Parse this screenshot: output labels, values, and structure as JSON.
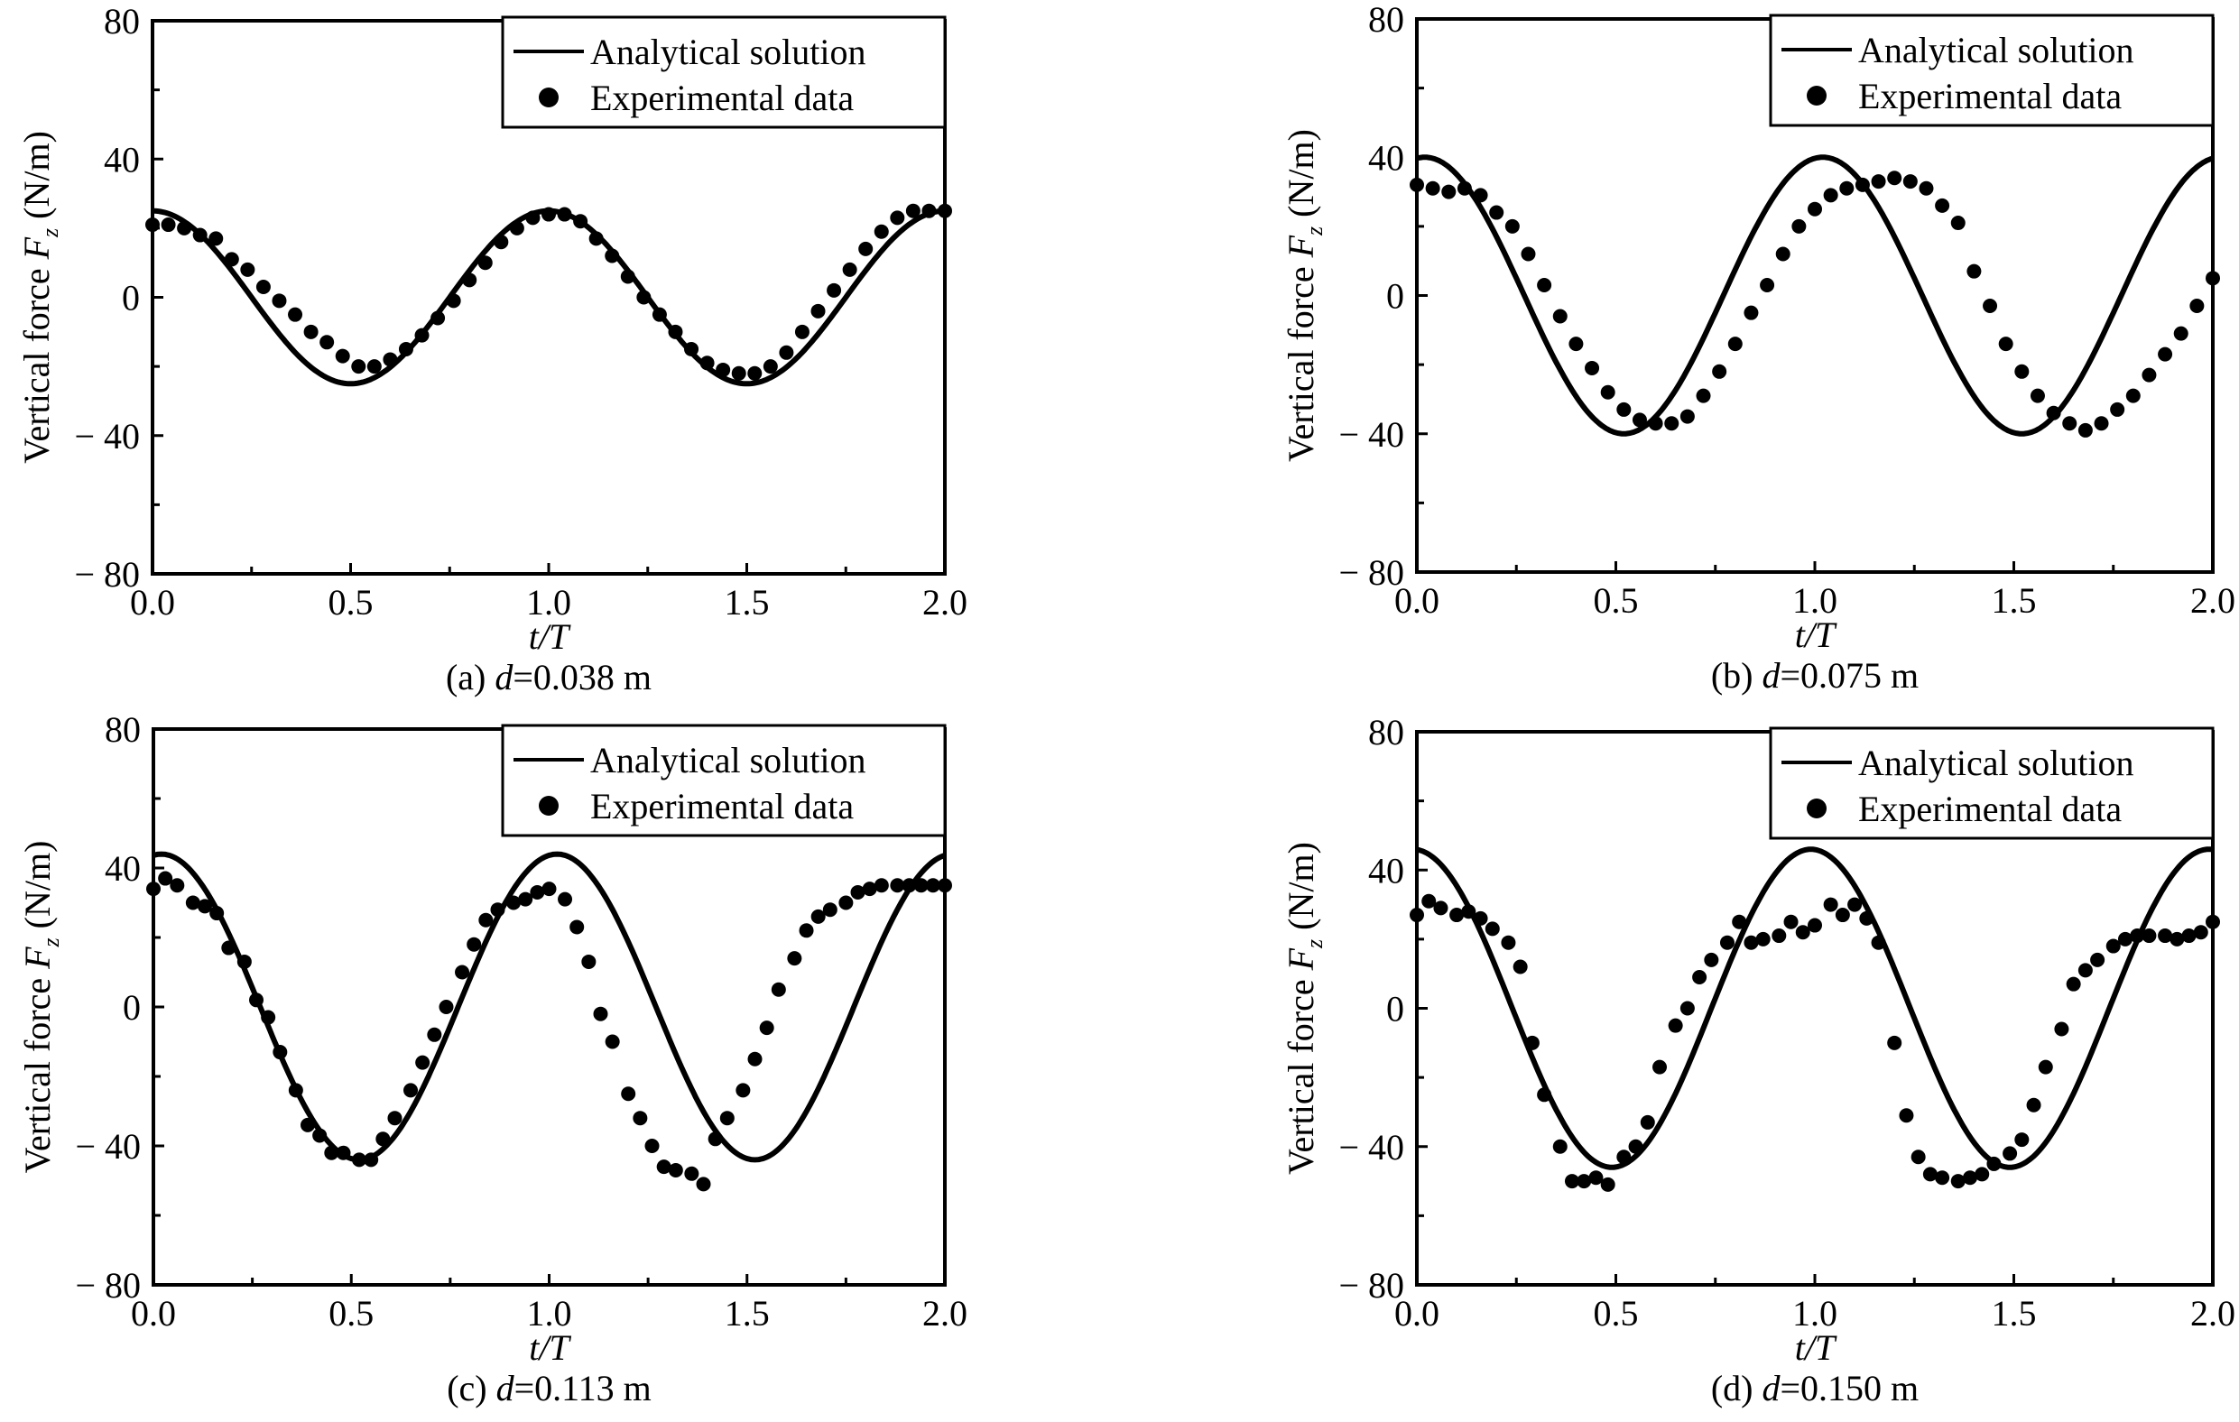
{
  "chart_data": [
    {
      "type": "line",
      "id": "a",
      "caption_prefix": "(a) ",
      "caption_var": "d",
      "caption_suffix": "=0.038 m",
      "xlabel": "t/T",
      "ylabel": "Vertical force F_z (N/m)",
      "ylabel_parts": {
        "prefix": "Vertical force ",
        "var": "F",
        "sub": "z",
        "suffix": " (N/m)"
      },
      "xlim": [
        0,
        2
      ],
      "ylim": [
        -80,
        80
      ],
      "xticks": [
        0.0,
        0.5,
        1.0,
        1.5,
        2.0
      ],
      "xtick_labels": [
        "0.0",
        "0.5",
        "1.0",
        "1.5",
        "2.0"
      ],
      "yticks": [
        80,
        40,
        0,
        -40,
        -80
      ],
      "ytick_labels": [
        "80",
        "40",
        "0",
        "− 40",
        "− 80"
      ],
      "legend": {
        "placement": "top-right",
        "entries": [
          "Analytical solution",
          "Experimental data"
        ]
      },
      "series": [
        {
          "name": "Analytical solution",
          "kind": "line",
          "amplitude": 25,
          "peak_phase": 0.0
        },
        {
          "name": "Experimental data",
          "kind": "scatter",
          "x": [
            0.0,
            0.04,
            0.08,
            0.12,
            0.16,
            0.2,
            0.24,
            0.28,
            0.32,
            0.36,
            0.4,
            0.44,
            0.48,
            0.52,
            0.56,
            0.6,
            0.64,
            0.68,
            0.72,
            0.76,
            0.8,
            0.84,
            0.88,
            0.92,
            0.96,
            1.0,
            1.04,
            1.08,
            1.12,
            1.16,
            1.2,
            1.24,
            1.28,
            1.32,
            1.36,
            1.4,
            1.44,
            1.48,
            1.52,
            1.56,
            1.6,
            1.64,
            1.68,
            1.72,
            1.76,
            1.8,
            1.84,
            1.88,
            1.92,
            1.96,
            2.0
          ],
          "y": [
            21,
            21,
            20,
            18,
            17,
            11,
            8,
            3,
            -1,
            -5,
            -10,
            -13,
            -17,
            -20,
            -20,
            -18,
            -15,
            -11,
            -6,
            -1,
            5,
            10,
            16,
            20,
            23,
            24,
            24,
            22,
            17,
            12,
            6,
            0,
            -5,
            -10,
            -15,
            -19,
            -21,
            -22,
            -22,
            -20,
            -16,
            -10,
            -4,
            2,
            8,
            14,
            19,
            23,
            25,
            25,
            25
          ]
        }
      ]
    },
    {
      "type": "line",
      "id": "b",
      "caption_prefix": "(b) ",
      "caption_var": "d",
      "caption_suffix": "=0.075 m",
      "xlabel": "t/T",
      "ylabel": "Vertical force F_z (N/m)",
      "ylabel_parts": {
        "prefix": "Vertical force ",
        "var": "F",
        "sub": "z",
        "suffix": " (N/m)"
      },
      "xlim": [
        0,
        2
      ],
      "ylim": [
        -80,
        80
      ],
      "xticks": [
        0.0,
        0.5,
        1.0,
        1.5,
        2.0
      ],
      "xtick_labels": [
        "0.0",
        "0.5",
        "1.0",
        "1.5",
        "2.0"
      ],
      "yticks": [
        80,
        40,
        0,
        -40,
        -80
      ],
      "ytick_labels": [
        "80",
        "40",
        "0",
        "− 40",
        "− 80"
      ],
      "legend": {
        "placement": "top-right",
        "entries": [
          "Analytical solution",
          "Experimental data"
        ]
      },
      "series": [
        {
          "name": "Analytical solution",
          "kind": "line",
          "amplitude": 40,
          "peak_phase": 0.02
        },
        {
          "name": "Experimental data",
          "kind": "scatter",
          "x": [
            0.0,
            0.04,
            0.08,
            0.12,
            0.16,
            0.2,
            0.24,
            0.28,
            0.32,
            0.36,
            0.4,
            0.44,
            0.48,
            0.52,
            0.56,
            0.6,
            0.64,
            0.68,
            0.72,
            0.76,
            0.8,
            0.84,
            0.88,
            0.92,
            0.96,
            1.0,
            1.04,
            1.08,
            1.12,
            1.16,
            1.2,
            1.24,
            1.28,
            1.32,
            1.36,
            1.4,
            1.44,
            1.48,
            1.52,
            1.56,
            1.6,
            1.64,
            1.68,
            1.72,
            1.76,
            1.8,
            1.84,
            1.88,
            1.92,
            1.96,
            2.0
          ],
          "y": [
            32,
            31,
            30,
            31,
            29,
            24,
            20,
            12,
            3,
            -6,
            -14,
            -21,
            -28,
            -33,
            -36,
            -37,
            -37,
            -35,
            -29,
            -22,
            -14,
            -5,
            3,
            12,
            20,
            25,
            29,
            31,
            32,
            33,
            34,
            33,
            31,
            26,
            21,
            7,
            -3,
            -14,
            -22,
            -29,
            -34,
            -37,
            -39,
            -37,
            -33,
            -29,
            -23,
            -17,
            -11,
            -3,
            5
          ]
        }
      ]
    },
    {
      "type": "line",
      "id": "c",
      "caption_prefix": "(c) ",
      "caption_var": "d",
      "caption_suffix": "=0.113 m",
      "xlabel": "t/T",
      "ylabel": "Vertical force F_z (N/m)",
      "ylabel_parts": {
        "prefix": "Vertical force ",
        "var": "F",
        "sub": "z",
        "suffix": " (N/m)"
      },
      "xlim": [
        0,
        2
      ],
      "ylim": [
        -80,
        80
      ],
      "xticks": [
        0.0,
        0.5,
        1.0,
        1.5,
        2.0
      ],
      "xtick_labels": [
        "0.0",
        "0.5",
        "1.0",
        "1.5",
        "2.0"
      ],
      "yticks": [
        80,
        40,
        0,
        -40,
        -80
      ],
      "ytick_labels": [
        "80",
        "40",
        "0",
        "− 40",
        "− 80"
      ],
      "legend": {
        "placement": "top-right",
        "entries": [
          "Analytical solution",
          "Experimental data"
        ]
      },
      "series": [
        {
          "name": "Analytical solution",
          "kind": "line",
          "amplitude": 44,
          "peak_phase": 0.02
        },
        {
          "name": "Experimental data",
          "kind": "scatter",
          "x": [
            0.0,
            0.03,
            0.06,
            0.1,
            0.13,
            0.16,
            0.19,
            0.23,
            0.26,
            0.29,
            0.32,
            0.36,
            0.39,
            0.42,
            0.45,
            0.48,
            0.52,
            0.55,
            0.58,
            0.61,
            0.65,
            0.68,
            0.71,
            0.74,
            0.78,
            0.81,
            0.84,
            0.87,
            0.91,
            0.94,
            0.97,
            1.0,
            1.04,
            1.07,
            1.1,
            1.13,
            1.16,
            1.2,
            1.23,
            1.26,
            1.29,
            1.32,
            1.36,
            1.39,
            1.42,
            1.45,
            1.49,
            1.52,
            1.55,
            1.58,
            1.62,
            1.65,
            1.68,
            1.71,
            1.75,
            1.78,
            1.81,
            1.84,
            1.88,
            1.91,
            1.94,
            1.97,
            2.0
          ],
          "y": [
            34,
            37,
            35,
            30,
            29,
            27,
            17,
            13,
            2,
            -3,
            -13,
            -24,
            -34,
            -37,
            -42,
            -42,
            -44,
            -44,
            -38,
            -32,
            -24,
            -16,
            -8,
            0,
            10,
            18,
            25,
            28,
            30,
            31,
            33,
            34,
            31,
            23,
            13,
            -2,
            -10,
            -25,
            -32,
            -40,
            -46,
            -47,
            -48,
            -51,
            -38,
            -32,
            -24,
            -15,
            -6,
            5,
            14,
            22,
            26,
            28,
            30,
            33,
            34,
            35,
            35,
            35,
            35,
            35,
            35
          ]
        }
      ]
    },
    {
      "type": "line",
      "id": "d",
      "caption_prefix": "(d) ",
      "caption_var": "d",
      "caption_suffix": "=0.150 m",
      "xlabel": "t/T",
      "ylabel": "Vertical force F_z (N/m)",
      "ylabel_parts": {
        "prefix": "Vertical force ",
        "var": "F",
        "sub": "z",
        "suffix": " (N/m)"
      },
      "xlim": [
        0,
        2
      ],
      "ylim": [
        -80,
        80
      ],
      "xticks": [
        0.0,
        0.5,
        1.0,
        1.5,
        2.0
      ],
      "xtick_labels": [
        "0.0",
        "0.5",
        "1.0",
        "1.5",
        "2.0"
      ],
      "yticks": [
        80,
        40,
        0,
        -40,
        -80
      ],
      "ytick_labels": [
        "80",
        "40",
        "0",
        "− 40",
        "− 80"
      ],
      "legend": {
        "placement": "top-right",
        "entries": [
          "Analytical solution",
          "Experimental data"
        ]
      },
      "series": [
        {
          "name": "Analytical solution",
          "kind": "line",
          "amplitude": 46,
          "peak_phase": -0.01
        },
        {
          "name": "Experimental data",
          "kind": "scatter",
          "x": [
            0.0,
            0.03,
            0.06,
            0.1,
            0.13,
            0.16,
            0.19,
            0.23,
            0.26,
            0.29,
            0.32,
            0.36,
            0.39,
            0.42,
            0.45,
            0.48,
            0.52,
            0.55,
            0.58,
            0.61,
            0.65,
            0.68,
            0.71,
            0.74,
            0.78,
            0.81,
            0.84,
            0.87,
            0.91,
            0.94,
            0.97,
            1.0,
            1.04,
            1.07,
            1.1,
            1.13,
            1.16,
            1.2,
            1.23,
            1.26,
            1.29,
            1.32,
            1.36,
            1.39,
            1.42,
            1.45,
            1.49,
            1.52,
            1.55,
            1.58,
            1.62,
            1.65,
            1.68,
            1.71,
            1.75,
            1.78,
            1.81,
            1.84,
            1.88,
            1.91,
            1.94,
            1.97,
            2.0
          ],
          "y": [
            27,
            31,
            29,
            27,
            28,
            26,
            23,
            19,
            12,
            -10,
            -25,
            -40,
            -50,
            -50,
            -49,
            -51,
            -43,
            -40,
            -33,
            -17,
            -5,
            0,
            9,
            14,
            19,
            25,
            19,
            20,
            21,
            25,
            22,
            24,
            30,
            27,
            30,
            26,
            19,
            -10,
            -31,
            -43,
            -48,
            -49,
            -50,
            -49,
            -48,
            -45,
            -42,
            -38,
            -28,
            -17,
            -6,
            7,
            11,
            14,
            18,
            20,
            21,
            21,
            21,
            20,
            21,
            22,
            25
          ]
        }
      ]
    }
  ]
}
